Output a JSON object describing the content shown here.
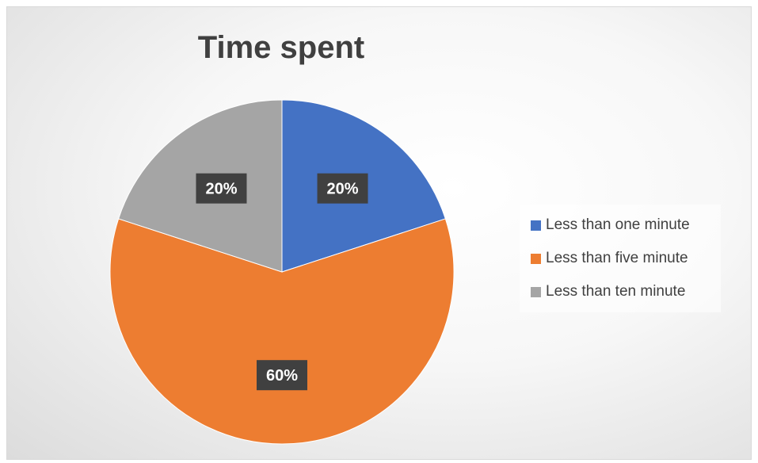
{
  "chart_data": {
    "type": "pie",
    "title": "Time spent",
    "categories": [
      "Less than one minute",
      "Less than five minute",
      "Less than ten minute"
    ],
    "values": [
      20,
      60,
      20
    ],
    "data_labels": [
      "20%",
      "60%",
      "20%"
    ],
    "colors": [
      "#4472c4",
      "#ed7d31",
      "#a5a5a5"
    ],
    "legend_position": "right"
  }
}
